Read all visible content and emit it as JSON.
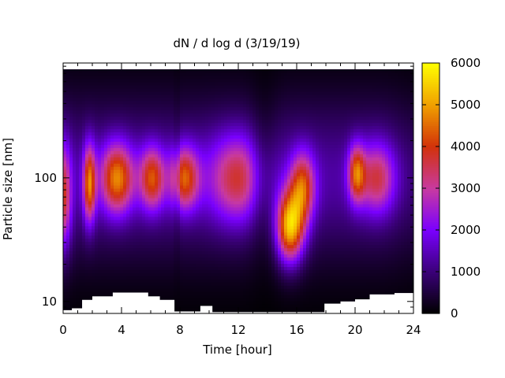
{
  "chart_data": {
    "type": "heatmap",
    "title": "dN / d log d (3/19/19)",
    "xlabel": "Time [hour]",
    "ylabel": "Particle size [nm]",
    "xlim": [
      0,
      24
    ],
    "ylim": [
      8,
      850
    ],
    "y_scale": "log",
    "x_ticks": [
      "0",
      "4",
      "8",
      "12",
      "16",
      "20",
      "24"
    ],
    "x_tick_values": [
      0,
      4,
      8,
      12,
      16,
      20,
      24
    ],
    "y_ticks": [
      "10",
      "100"
    ],
    "y_tick_values": [
      10,
      100
    ],
    "colorbar": {
      "min": 0,
      "max": 6000,
      "ticks": [
        "0",
        "1000",
        "2000",
        "3000",
        "4000",
        "5000",
        "6000"
      ],
      "tick_values": [
        0,
        1000,
        2000,
        3000,
        4000,
        5000,
        6000
      ],
      "palette": [
        "#000000",
        "#3a0078",
        "#7a00ff",
        "#c83aa0",
        "#d2320a",
        "#f0a000",
        "#ffff00"
      ]
    },
    "blobs": [
      {
        "t": 0.0,
        "d": 70,
        "peak": 2700,
        "wt": 0.4,
        "wd": 0.3
      },
      {
        "t": 1.8,
        "d": 90,
        "peak": 3400,
        "wt": 0.3,
        "wd": 0.22
      },
      {
        "t": 3.7,
        "d": 100,
        "peak": 3500,
        "wt": 0.8,
        "wd": 0.2
      },
      {
        "t": 6.1,
        "d": 100,
        "peak": 3000,
        "wt": 0.6,
        "wd": 0.18
      },
      {
        "t": 8.3,
        "d": 100,
        "peak": 3100,
        "wt": 0.7,
        "wd": 0.18
      },
      {
        "t": 12.0,
        "d": 100,
        "peak": 2500,
        "wt": 1.4,
        "wd": 0.25
      },
      {
        "t": 15.5,
        "d": 40,
        "peak": 4600,
        "wt": 0.7,
        "wd": 0.2
      },
      {
        "t": 16.4,
        "d": 85,
        "peak": 3000,
        "wt": 0.6,
        "wd": 0.2
      },
      {
        "t": 20.1,
        "d": 110,
        "peak": 2900,
        "wt": 0.4,
        "wd": 0.16
      },
      {
        "t": 21.5,
        "d": 100,
        "peak": 2400,
        "wt": 0.9,
        "wd": 0.2
      }
    ],
    "background": {
      "base": 1300,
      "center_d": 100,
      "width": 0.45
    },
    "time_modulation": [
      {
        "t": 13.8,
        "factor": 0.55,
        "w": 0.7
      },
      {
        "t": 7.8,
        "factor": 0.8,
        "w": 0.15
      },
      {
        "t": 24.0,
        "factor": 0.75,
        "w": 1.0
      }
    ],
    "missing_below": [
      {
        "t0": 0.0,
        "t1": 0.6,
        "d": 8.5
      },
      {
        "t0": 0.6,
        "t1": 1.3,
        "d": 8.8
      },
      {
        "t0": 1.3,
        "t1": 2.0,
        "d": 10.3
      },
      {
        "t0": 2.0,
        "t1": 3.4,
        "d": 11.0
      },
      {
        "t0": 3.4,
        "t1": 5.8,
        "d": 11.8
      },
      {
        "t0": 5.8,
        "t1": 6.6,
        "d": 11.0
      },
      {
        "t0": 6.6,
        "t1": 7.6,
        "d": 10.3
      },
      {
        "t0": 7.6,
        "t1": 9.4,
        "d": 8.3
      },
      {
        "t0": 9.4,
        "t1": 10.2,
        "d": 9.2
      },
      {
        "t0": 10.2,
        "t1": 17.9,
        "d": 8.2
      },
      {
        "t0": 17.9,
        "t1": 19.0,
        "d": 9.6
      },
      {
        "t0": 19.0,
        "t1": 20.0,
        "d": 10.0
      },
      {
        "t0": 20.0,
        "t1": 21.0,
        "d": 10.4
      },
      {
        "t0": 21.0,
        "t1": 22.7,
        "d": 11.4
      },
      {
        "t0": 22.7,
        "t1": 24.0,
        "d": 11.7
      }
    ]
  }
}
